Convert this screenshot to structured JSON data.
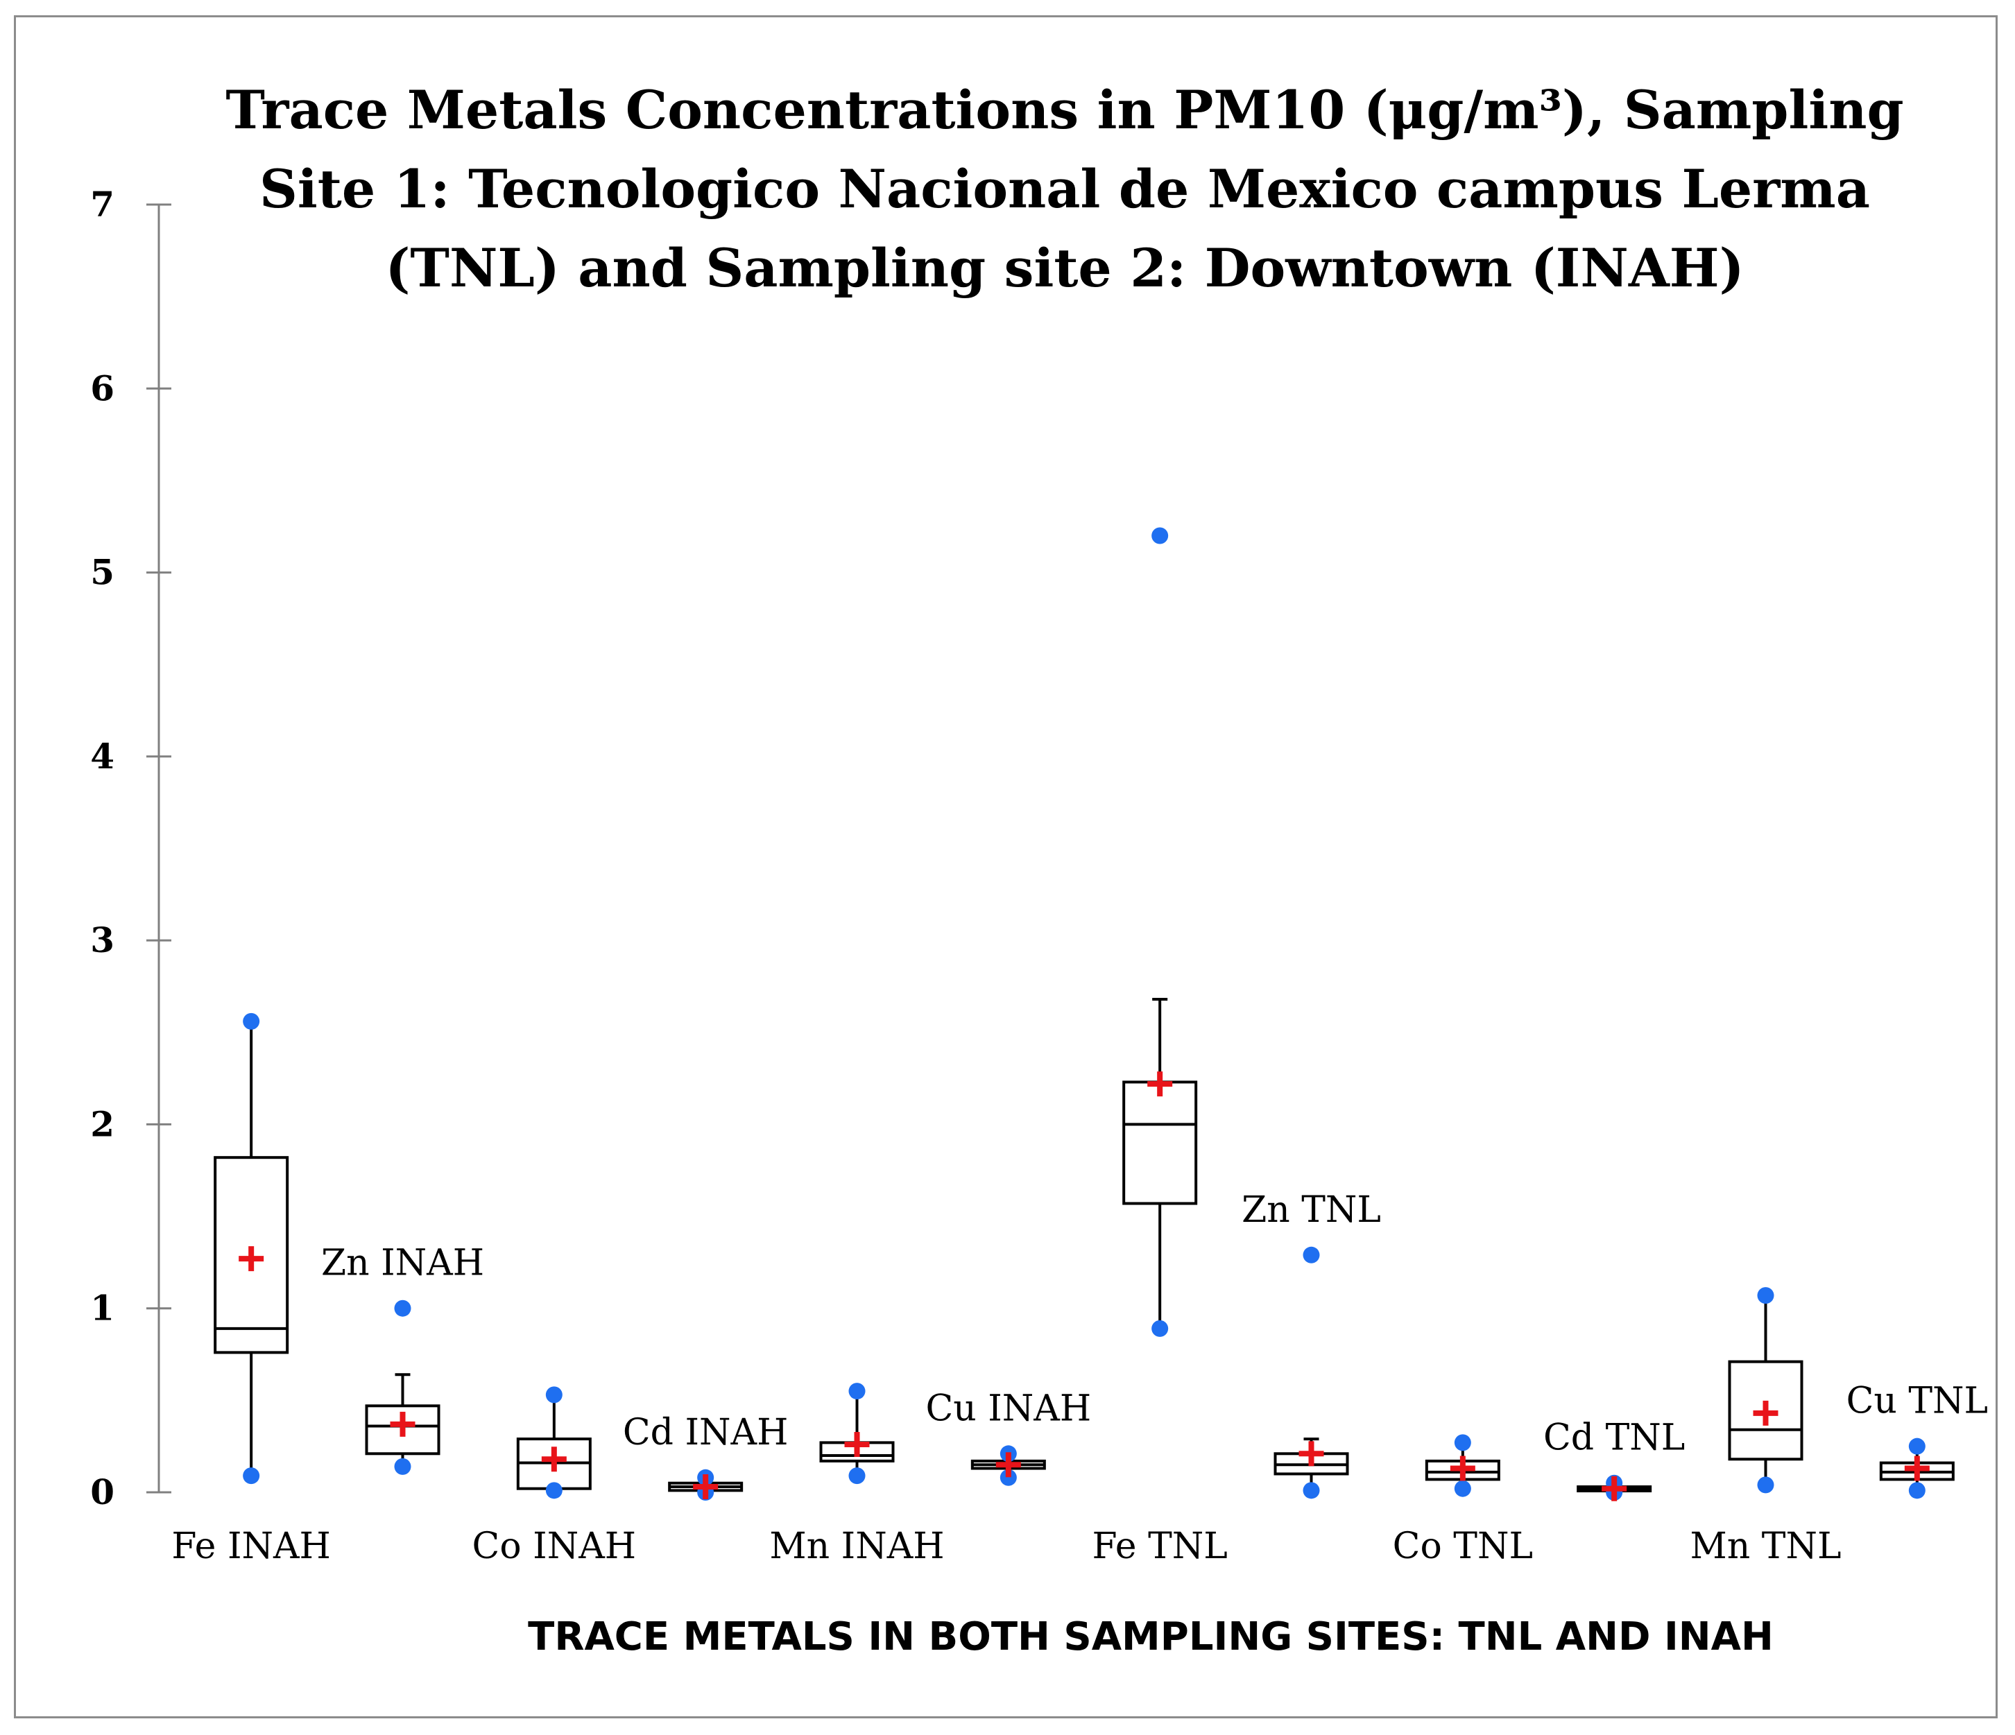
{
  "chart_data": {
    "type": "box",
    "title_lines": [
      "Trace Metals Concentrations in PM10 (μg/m³), Sampling",
      "Site 1: Tecnologico Nacional de Mexico campus Lerma",
      "(TNL) and Sampling site 2: Downtown (INAH)"
    ],
    "xlabel": "TRACE METALS IN BOTH SAMPLING SITES: TNL AND INAH",
    "ylabel": "",
    "ylim": [
      0,
      7
    ],
    "yticks": [
      0,
      1,
      2,
      3,
      4,
      5,
      6,
      7
    ],
    "grid": false,
    "colors": {
      "box_stroke": "#000000",
      "mean_marker": "#e8141a",
      "point": "#1f6ff0",
      "axis": "#808080",
      "frame": "#8c8c8c"
    },
    "series": [
      {
        "name": "Fe INAH",
        "label_position": "below",
        "min": 0.09,
        "q1": 0.76,
        "median": 0.89,
        "q3": 1.82,
        "max": 2.56,
        "mean": 1.27,
        "points": [
          0.09,
          2.56
        ]
      },
      {
        "name": "Zn INAH",
        "label_position": "above",
        "min": 0.14,
        "q1": 0.21,
        "median": 0.36,
        "q3": 0.47,
        "max": 0.64,
        "mean": 0.37,
        "points": [
          0.14,
          1.0
        ]
      },
      {
        "name": "Co INAH",
        "label_position": "below",
        "min": 0.02,
        "q1": 0.02,
        "median": 0.16,
        "q3": 0.29,
        "max": 0.53,
        "mean": 0.18,
        "points": [
          0.01,
          0.53
        ]
      },
      {
        "name": "Cd INAH",
        "label_position": "above",
        "min": 0.01,
        "q1": 0.01,
        "median": 0.03,
        "q3": 0.05,
        "max": 0.08,
        "mean": 0.03,
        "points": [
          0.0,
          0.08
        ]
      },
      {
        "name": "Mn INAH",
        "label_position": "below",
        "min": 0.09,
        "q1": 0.17,
        "median": 0.2,
        "q3": 0.27,
        "max": 0.55,
        "mean": 0.26,
        "points": [
          0.09,
          0.55
        ]
      },
      {
        "name": "Cu INAH",
        "label_position": "above",
        "min": 0.08,
        "q1": 0.13,
        "median": 0.15,
        "q3": 0.17,
        "max": 0.21,
        "mean": 0.15,
        "points": [
          0.08,
          0.21
        ]
      },
      {
        "name": "Fe TNL",
        "label_position": "below",
        "min": 0.89,
        "q1": 1.57,
        "median": 2.0,
        "q3": 2.23,
        "max": 2.68,
        "mean": 2.22,
        "points": [
          0.89,
          5.2
        ]
      },
      {
        "name": "Zn TNL",
        "label_position": "above",
        "min": 0.01,
        "q1": 0.1,
        "median": 0.15,
        "q3": 0.21,
        "max": 0.29,
        "mean": 0.21,
        "points": [
          0.01,
          1.29
        ]
      },
      {
        "name": "Co TNL",
        "label_position": "below",
        "min": 0.02,
        "q1": 0.07,
        "median": 0.11,
        "q3": 0.17,
        "max": 0.27,
        "mean": 0.13,
        "points": [
          0.02,
          0.27
        ]
      },
      {
        "name": "Cd TNL",
        "label_position": "above",
        "min": 0.0,
        "q1": 0.01,
        "median": 0.02,
        "q3": 0.03,
        "max": 0.05,
        "mean": 0.02,
        "points": [
          0.0,
          0.05
        ]
      },
      {
        "name": "Mn TNL",
        "label_position": "below",
        "min": 0.04,
        "q1": 0.18,
        "median": 0.34,
        "q3": 0.71,
        "max": 1.07,
        "mean": 0.43,
        "points": [
          0.04,
          1.07
        ]
      },
      {
        "name": "Cu TNL",
        "label_position": "above",
        "min": 0.01,
        "q1": 0.07,
        "median": 0.11,
        "q3": 0.16,
        "max": 0.25,
        "mean": 0.13,
        "points": [
          0.01,
          0.25
        ]
      }
    ]
  }
}
